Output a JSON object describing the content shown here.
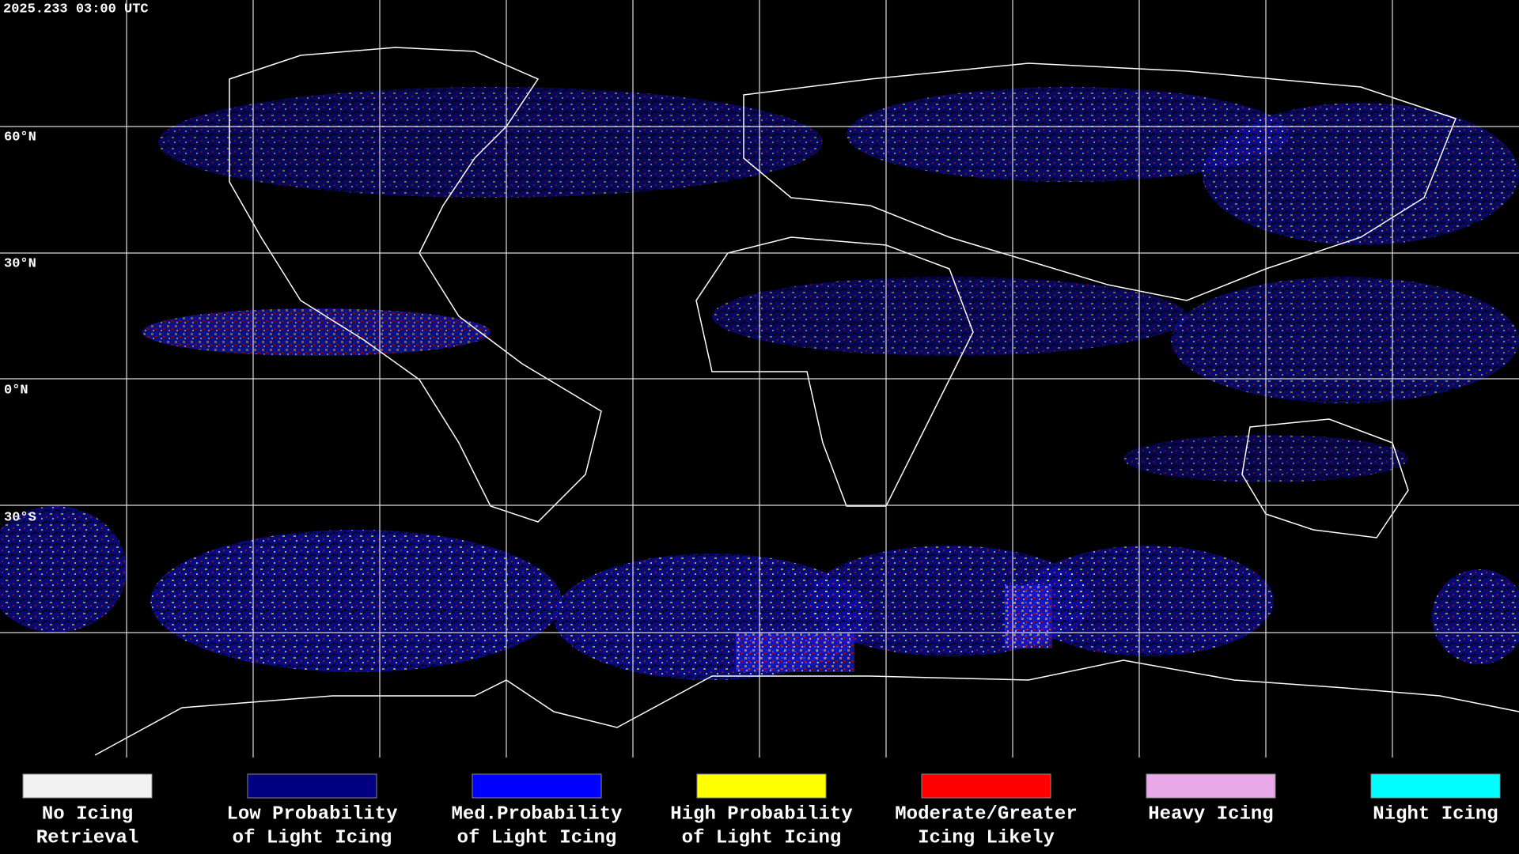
{
  "header": {
    "timestamp": "2025.233 03:00 UTC"
  },
  "latitude_labels": [
    "60°N",
    "30°N",
    "0°N",
    "30°S"
  ],
  "legend": {
    "items": [
      {
        "lines": [
          "No Icing",
          "Retrieval"
        ],
        "color": "#f2f2f2"
      },
      {
        "lines": [
          "Low Probability",
          "of Light Icing"
        ],
        "color": "#000080"
      },
      {
        "lines": [
          "Med.Probability",
          "of Light Icing"
        ],
        "color": "#0000ff"
      },
      {
        "lines": [
          "High Probability",
          "of Light Icing"
        ],
        "color": "#ffff00"
      },
      {
        "lines": [
          "Moderate/Greater",
          "Icing Likely"
        ],
        "color": "#ff0000"
      },
      {
        "lines": [
          "Heavy Icing"
        ],
        "color": "#e9a9e9"
      },
      {
        "lines": [
          "Night Icing"
        ],
        "color": "#00ffff"
      }
    ]
  }
}
